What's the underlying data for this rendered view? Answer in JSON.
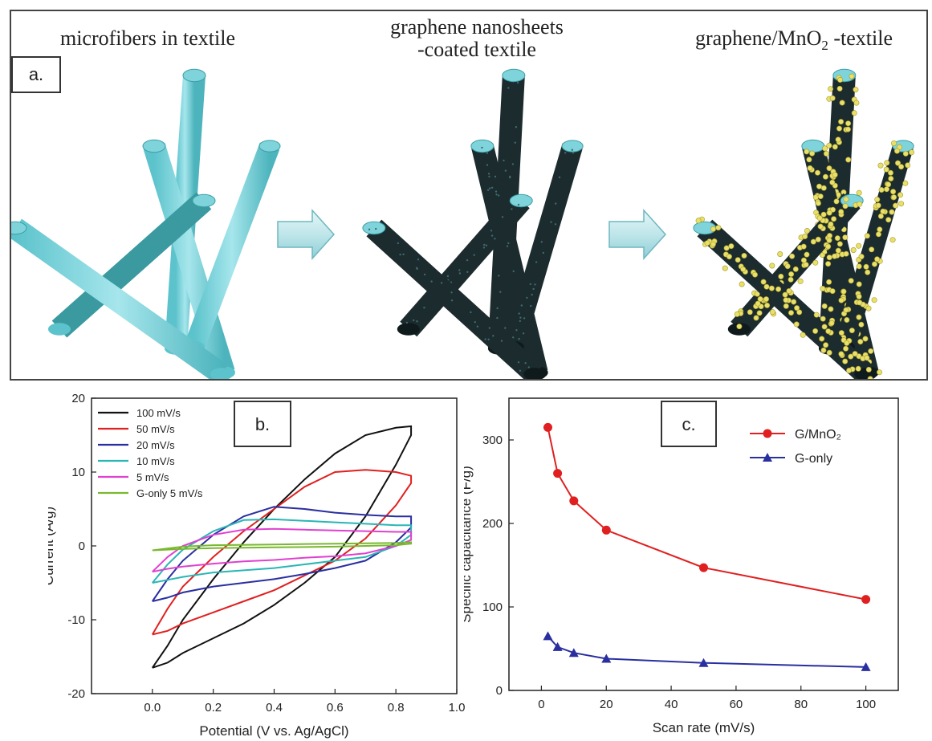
{
  "panel_a": {
    "label": "a.",
    "steps": [
      {
        "line1": "microfibers  in textile",
        "line2": ""
      },
      {
        "line1": "graphene nanosheets",
        "line2": "-coated textile"
      },
      {
        "line1": "graphene/MnO",
        "sub": "2",
        "suffix": " -textile"
      }
    ],
    "colors": {
      "fiber": "#7fd4dc",
      "fiber_dark": "#3a9aa0",
      "coated": "#1c2b2e",
      "particle": "#e8e06a"
    }
  },
  "chart_data": [
    {
      "panel_label": "b.",
      "type": "line",
      "xlabel": "Potential (V vs. Ag/AgCl)",
      "ylabel": "Current (A/g)",
      "xlim": [
        -0.2,
        1.0
      ],
      "ylim": [
        -20,
        20
      ],
      "xticks": [
        "0.0",
        "0.2",
        "0.4",
        "0.6",
        "0.8",
        "1.0"
      ],
      "yticks": [
        "-20",
        "-10",
        "0",
        "10",
        "20"
      ],
      "legend_position": "top-left",
      "series": [
        {
          "name": "100 mV/s",
          "color": "#111111",
          "x": [
            0.0,
            0.05,
            0.1,
            0.2,
            0.3,
            0.4,
            0.5,
            0.6,
            0.7,
            0.8,
            0.85,
            0.85,
            0.8,
            0.7,
            0.6,
            0.5,
            0.4,
            0.3,
            0.2,
            0.1,
            0.05,
            0.0,
            0.0
          ],
          "y": [
            -16.5,
            -13.5,
            -10,
            -4.5,
            0.5,
            5,
            9,
            12.5,
            15,
            16,
            16.2,
            15,
            11,
            4,
            -1.5,
            -5,
            -8,
            -10.5,
            -12.5,
            -14.5,
            -15.8,
            -16.5,
            -16.5
          ]
        },
        {
          "name": "50 mV/s",
          "color": "#e02020",
          "x": [
            0.0,
            0.05,
            0.1,
            0.2,
            0.3,
            0.4,
            0.5,
            0.6,
            0.7,
            0.8,
            0.85,
            0.85,
            0.8,
            0.7,
            0.6,
            0.5,
            0.4,
            0.3,
            0.2,
            0.1,
            0.05,
            0.0,
            0.0
          ],
          "y": [
            -12,
            -8.5,
            -5.5,
            -1.5,
            2,
            5,
            8,
            10,
            10.3,
            10,
            9.5,
            8.5,
            5.5,
            1,
            -2,
            -4,
            -6,
            -7.5,
            -9,
            -10.5,
            -11.5,
            -12,
            -12
          ]
        },
        {
          "name": "20 mV/s",
          "color": "#2a2fa0",
          "x": [
            0.0,
            0.05,
            0.1,
            0.2,
            0.3,
            0.4,
            0.5,
            0.6,
            0.7,
            0.8,
            0.85,
            0.85,
            0.8,
            0.7,
            0.6,
            0.5,
            0.4,
            0.3,
            0.2,
            0.1,
            0.05,
            0.0,
            0.0
          ],
          "y": [
            -7.5,
            -4.5,
            -2,
            1.5,
            4,
            5.3,
            5,
            4.5,
            4.2,
            4,
            4,
            2.5,
            0.5,
            -2,
            -3,
            -3.8,
            -4.5,
            -5,
            -5.5,
            -6.3,
            -7,
            -7.5,
            -7.5
          ]
        },
        {
          "name": "10 mV/s",
          "color": "#2ab5b5",
          "x": [
            0.0,
            0.05,
            0.1,
            0.2,
            0.3,
            0.4,
            0.5,
            0.6,
            0.7,
            0.8,
            0.85,
            0.85,
            0.8,
            0.7,
            0.6,
            0.5,
            0.4,
            0.3,
            0.2,
            0.1,
            0.05,
            0.0,
            0.0
          ],
          "y": [
            -5,
            -2.5,
            -0.5,
            2,
            3.5,
            3.6,
            3.4,
            3.2,
            3.0,
            2.8,
            2.8,
            1.5,
            0,
            -1.5,
            -2,
            -2.5,
            -3,
            -3.3,
            -3.6,
            -4.2,
            -4.6,
            -5,
            -5
          ]
        },
        {
          "name": "5 mV/s",
          "color": "#e040d0",
          "x": [
            0.0,
            0.05,
            0.1,
            0.2,
            0.3,
            0.4,
            0.5,
            0.6,
            0.7,
            0.8,
            0.85,
            0.85,
            0.8,
            0.7,
            0.6,
            0.5,
            0.4,
            0.3,
            0.2,
            0.1,
            0.05,
            0.0,
            0.0
          ],
          "y": [
            -3.5,
            -1.5,
            0,
            1.5,
            2.2,
            2.3,
            2.2,
            2.1,
            2.0,
            1.9,
            1.9,
            0.8,
            0,
            -1,
            -1.4,
            -1.6,
            -1.9,
            -2.1,
            -2.4,
            -2.8,
            -3.1,
            -3.5,
            -3.5
          ]
        },
        {
          "name": "G-only 5 mV/s",
          "color": "#7ab830",
          "x": [
            0.0,
            0.1,
            0.2,
            0.4,
            0.6,
            0.8,
            0.85,
            0.85,
            0.8,
            0.6,
            0.4,
            0.2,
            0.1,
            0.0,
            0.0
          ],
          "y": [
            -0.6,
            -0.1,
            0.1,
            0.2,
            0.3,
            0.4,
            0.5,
            0.3,
            0.1,
            -0.1,
            -0.2,
            -0.3,
            -0.4,
            -0.6,
            -0.6
          ]
        }
      ]
    },
    {
      "panel_label": "c.",
      "type": "line",
      "xlabel": "Scan rate (mV/s)",
      "ylabel": "Specific capacitance (F/g)",
      "xlim": [
        -10,
        110
      ],
      "ylim": [
        0,
        350
      ],
      "xticks": [
        "0",
        "20",
        "40",
        "60",
        "80",
        "100"
      ],
      "yticks": [
        "0",
        "100",
        "200",
        "300"
      ],
      "legend_position": "top-right",
      "series": [
        {
          "name": "G/MnO₂",
          "color": "#e02020",
          "marker": "circle",
          "x": [
            2,
            5,
            10,
            20,
            50,
            100
          ],
          "y": [
            315,
            260,
            227,
            192,
            147,
            109
          ]
        },
        {
          "name": "G-only",
          "color": "#2a2fa0",
          "marker": "triangle",
          "x": [
            2,
            5,
            10,
            20,
            50,
            100
          ],
          "y": [
            65,
            52,
            45,
            38,
            33,
            28
          ]
        }
      ]
    }
  ]
}
